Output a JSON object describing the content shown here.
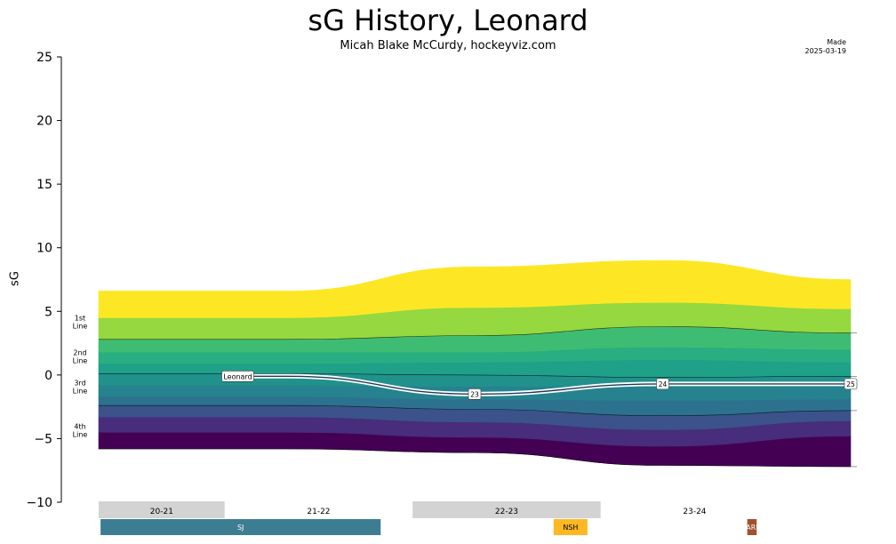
{
  "header": {
    "title": "sG History, Leonard",
    "subtitle": "Micah Blake McCurdy, hockeyviz.com",
    "made_label": "Made",
    "made_date": "2025-03-19"
  },
  "chart_data": {
    "type": "area",
    "title": "sG History, Leonard",
    "ylabel": "sG",
    "ylim": [
      -10,
      25
    ],
    "yticks": [
      -10,
      -5,
      0,
      5,
      10,
      15,
      20,
      25
    ],
    "grid": false,
    "x": [
      0,
      1,
      2,
      3,
      4
    ],
    "line_labels": [
      {
        "label": "1st\nLine",
        "y": 4.2
      },
      {
        "label": "2nd\nLine",
        "y": 1.5
      },
      {
        "label": "3rd\nLine",
        "y": -0.9
      },
      {
        "label": "4th\nLine",
        "y": -4.3
      }
    ],
    "band_edges": [
      [
        -5.8,
        -5.8,
        -6.1,
        -7.1,
        -7.2
      ],
      [
        -4.5,
        -4.5,
        -4.9,
        -5.6,
        -4.8
      ],
      [
        -3.3,
        -3.3,
        -3.7,
        -4.3,
        -3.6
      ],
      [
        -2.4,
        -2.4,
        -2.7,
        -3.2,
        -2.8
      ],
      [
        -1.7,
        -1.7,
        -1.9,
        -2.0,
        -1.9
      ],
      [
        -0.8,
        -0.8,
        -0.9,
        -0.9,
        -0.9
      ],
      [
        0.1,
        0.1,
        0.0,
        -0.2,
        -0.1
      ],
      [
        0.9,
        0.9,
        1.0,
        1.2,
        1.0
      ],
      [
        1.8,
        1.8,
        1.8,
        2.2,
        2.0
      ],
      [
        2.8,
        2.8,
        3.1,
        3.8,
        3.3
      ],
      [
        4.5,
        4.5,
        5.3,
        5.7,
        5.2
      ],
      [
        6.6,
        6.6,
        8.5,
        9.0,
        7.5
      ]
    ],
    "band_colors": [
      "#440154",
      "#472d7b",
      "#3b528b",
      "#2c728e",
      "#26828e",
      "#21918c",
      "#1fa088",
      "#28ae80",
      "#3fbc73",
      "#95d840",
      "#fde725"
    ],
    "divider_edges": [
      0,
      3,
      6,
      9
    ],
    "series": [
      {
        "name": "Leonard",
        "values": [
          -0.1,
          -0.1,
          -1.5,
          -0.7,
          -0.7
        ],
        "point_labels": [
          "",
          "",
          "23",
          "24",
          "25"
        ]
      }
    ],
    "seasons": [
      {
        "label": "20-21",
        "start": 0.0,
        "end": 0.67,
        "shaded": true
      },
      {
        "label": "21-22",
        "start": 0.67,
        "end": 1.67,
        "shaded": false
      },
      {
        "label": "22-23",
        "start": 1.67,
        "end": 2.67,
        "shaded": true
      },
      {
        "label": "23-24",
        "start": 2.67,
        "end": 3.67,
        "shaded": false
      }
    ],
    "teams": [
      {
        "label": "SJ",
        "start": 0.01,
        "end": 1.5,
        "color": "#3d7d92"
      },
      {
        "label": "NSH",
        "start": 2.42,
        "end": 2.6,
        "color": "#fdb822"
      },
      {
        "label": "ARI",
        "start": 3.45,
        "end": 3.5,
        "color": "#a0522d"
      }
    ]
  }
}
